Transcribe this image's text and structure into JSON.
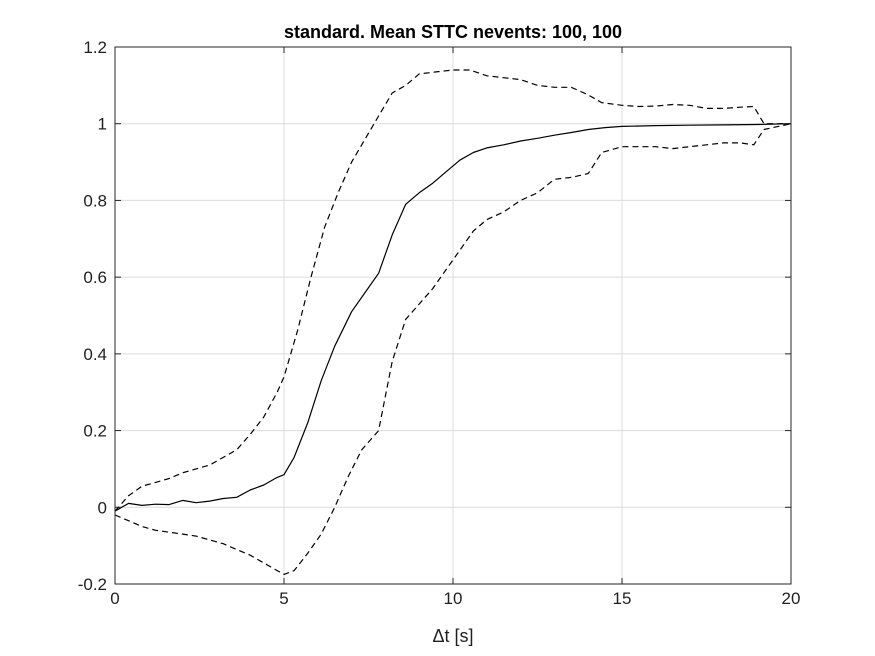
{
  "chart_data": {
    "type": "line",
    "title": "standard.  Mean STTC nevents: 100, 100",
    "xlabel": "Δt [s]",
    "ylabel": "",
    "xlim": [
      0,
      20
    ],
    "ylim": [
      -0.2,
      1.2
    ],
    "x_ticks": [
      "0",
      "5",
      "10",
      "15",
      "20"
    ],
    "y_ticks": [
      "-0.2",
      "0",
      "0.2",
      "0.4",
      "0.6",
      "0.8",
      "1",
      "1.2"
    ],
    "grid": true,
    "legend": "none",
    "series": [
      {
        "style": "solid",
        "color": "#000000",
        "points": [
          [
            0,
            -0.01
          ],
          [
            0.4,
            0.01
          ],
          [
            0.8,
            0.005
          ],
          [
            1.2,
            0.008
          ],
          [
            1.6,
            0.007
          ],
          [
            2.0,
            0.018
          ],
          [
            2.4,
            0.012
          ],
          [
            2.8,
            0.016
          ],
          [
            3.2,
            0.023
          ],
          [
            3.6,
            0.026
          ],
          [
            4.0,
            0.045
          ],
          [
            4.4,
            0.058
          ],
          [
            4.8,
            0.078
          ],
          [
            5.0,
            0.085
          ],
          [
            5.3,
            0.13
          ],
          [
            5.7,
            0.22
          ],
          [
            6.1,
            0.33
          ],
          [
            6.5,
            0.42
          ],
          [
            7.0,
            0.51
          ],
          [
            7.4,
            0.56
          ],
          [
            7.8,
            0.61
          ],
          [
            8.2,
            0.71
          ],
          [
            8.6,
            0.79
          ],
          [
            9.0,
            0.82
          ],
          [
            9.4,
            0.845
          ],
          [
            9.8,
            0.875
          ],
          [
            10.2,
            0.905
          ],
          [
            10.6,
            0.925
          ],
          [
            11.0,
            0.937
          ],
          [
            11.5,
            0.945
          ],
          [
            12.0,
            0.955
          ],
          [
            12.5,
            0.962
          ],
          [
            13.0,
            0.97
          ],
          [
            13.5,
            0.977
          ],
          [
            14.0,
            0.985
          ],
          [
            14.5,
            0.99
          ],
          [
            15.0,
            0.993
          ],
          [
            16.0,
            0.995
          ],
          [
            17.0,
            0.996
          ],
          [
            18.0,
            0.997
          ],
          [
            19.0,
            0.998
          ],
          [
            20.0,
            1.0
          ]
        ]
      },
      {
        "style": "dashed",
        "color": "#000000",
        "points": [
          [
            0,
            -0.01
          ],
          [
            0.4,
            0.03
          ],
          [
            0.8,
            0.055
          ],
          [
            1.2,
            0.065
          ],
          [
            1.6,
            0.075
          ],
          [
            2.0,
            0.09
          ],
          [
            2.4,
            0.1
          ],
          [
            2.8,
            0.11
          ],
          [
            3.2,
            0.13
          ],
          [
            3.6,
            0.15
          ],
          [
            4.0,
            0.19
          ],
          [
            4.4,
            0.235
          ],
          [
            4.8,
            0.3
          ],
          [
            5.0,
            0.34
          ],
          [
            5.4,
            0.46
          ],
          [
            5.8,
            0.6
          ],
          [
            6.2,
            0.73
          ],
          [
            6.6,
            0.82
          ],
          [
            7.0,
            0.9
          ],
          [
            7.4,
            0.96
          ],
          [
            7.8,
            1.02
          ],
          [
            8.2,
            1.08
          ],
          [
            8.6,
            1.1
          ],
          [
            9.0,
            1.13
          ],
          [
            9.5,
            1.135
          ],
          [
            10.0,
            1.14
          ],
          [
            10.5,
            1.14
          ],
          [
            11.0,
            1.125
          ],
          [
            11.5,
            1.12
          ],
          [
            12.0,
            1.115
          ],
          [
            12.5,
            1.1
          ],
          [
            13.0,
            1.095
          ],
          [
            13.5,
            1.095
          ],
          [
            14.0,
            1.075
          ],
          [
            14.4,
            1.055
          ],
          [
            15.0,
            1.048
          ],
          [
            15.5,
            1.045
          ],
          [
            16.0,
            1.046
          ],
          [
            16.5,
            1.05
          ],
          [
            17.0,
            1.048
          ],
          [
            17.5,
            1.04
          ],
          [
            18.0,
            1.04
          ],
          [
            18.5,
            1.043
          ],
          [
            18.9,
            1.045
          ],
          [
            19.2,
            1.0
          ],
          [
            20.0,
            1.0
          ]
        ]
      },
      {
        "style": "dashed",
        "color": "#000000",
        "points": [
          [
            0,
            -0.02
          ],
          [
            0.4,
            -0.035
          ],
          [
            0.8,
            -0.05
          ],
          [
            1.2,
            -0.06
          ],
          [
            1.6,
            -0.065
          ],
          [
            2.0,
            -0.07
          ],
          [
            2.4,
            -0.075
          ],
          [
            2.8,
            -0.085
          ],
          [
            3.2,
            -0.095
          ],
          [
            3.6,
            -0.11
          ],
          [
            4.0,
            -0.125
          ],
          [
            4.4,
            -0.145
          ],
          [
            4.8,
            -0.165
          ],
          [
            5.0,
            -0.175
          ],
          [
            5.3,
            -0.165
          ],
          [
            5.7,
            -0.12
          ],
          [
            6.1,
            -0.07
          ],
          [
            6.5,
            0.0
          ],
          [
            6.9,
            0.08
          ],
          [
            7.3,
            0.15
          ],
          [
            7.8,
            0.2
          ],
          [
            8.2,
            0.38
          ],
          [
            8.6,
            0.49
          ],
          [
            9.0,
            0.53
          ],
          [
            9.4,
            0.57
          ],
          [
            9.8,
            0.62
          ],
          [
            10.2,
            0.67
          ],
          [
            10.6,
            0.72
          ],
          [
            11.0,
            0.75
          ],
          [
            11.5,
            0.77
          ],
          [
            12.0,
            0.8
          ],
          [
            12.5,
            0.82
          ],
          [
            13.0,
            0.855
          ],
          [
            13.5,
            0.86
          ],
          [
            14.0,
            0.87
          ],
          [
            14.4,
            0.925
          ],
          [
            15.0,
            0.94
          ],
          [
            15.5,
            0.94
          ],
          [
            16.0,
            0.94
          ],
          [
            16.5,
            0.935
          ],
          [
            17.0,
            0.94
          ],
          [
            17.5,
            0.945
          ],
          [
            18.0,
            0.95
          ],
          [
            18.5,
            0.95
          ],
          [
            18.9,
            0.945
          ],
          [
            19.2,
            0.985
          ],
          [
            20.0,
            1.0
          ]
        ]
      }
    ]
  }
}
